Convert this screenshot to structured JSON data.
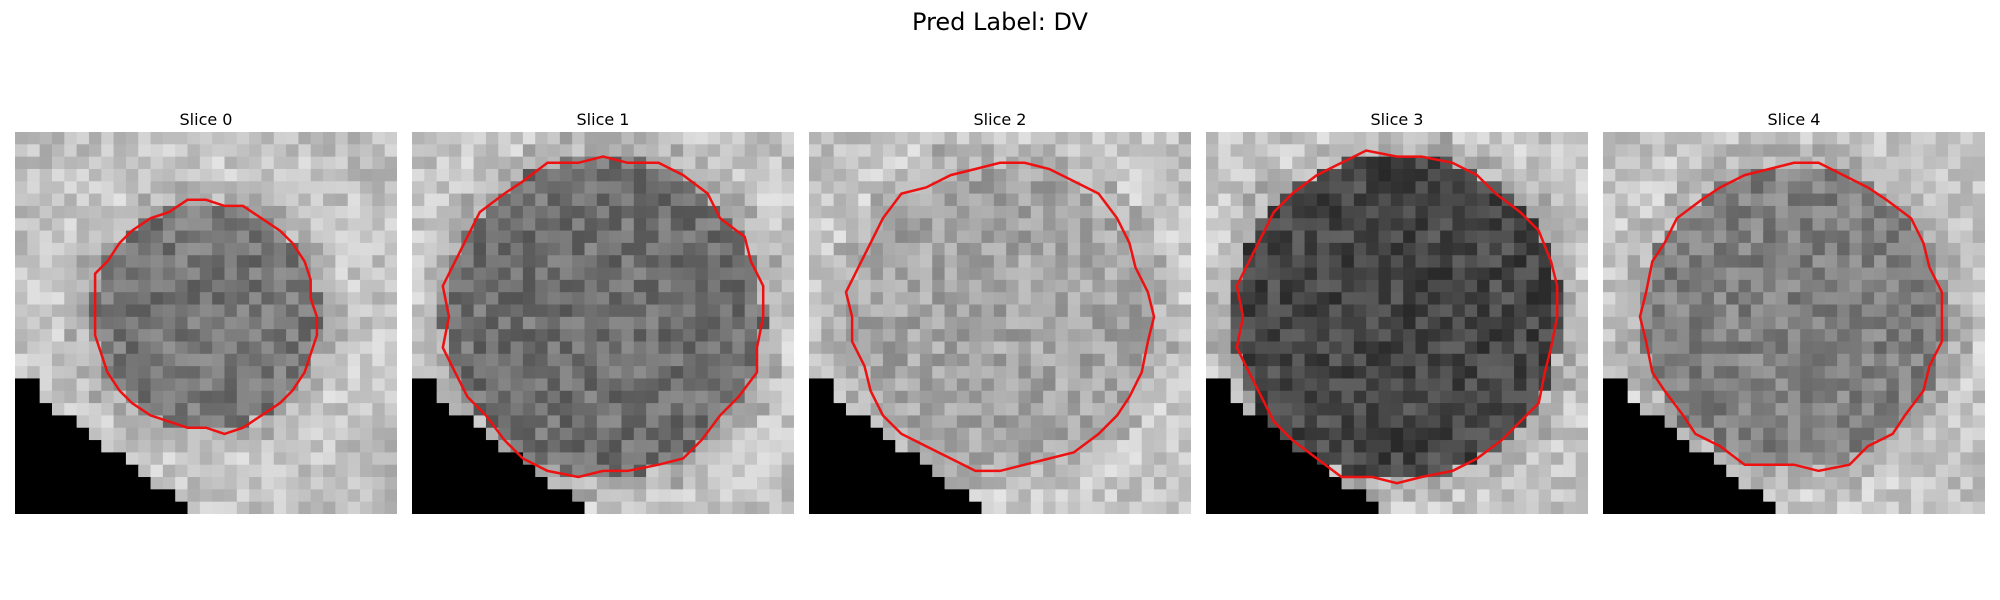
{
  "figure": {
    "title": "Pred Label: DV"
  },
  "panels": [
    {
      "title": "Slice 0",
      "tone": "light",
      "blob_mean": 118,
      "blob_radius_frac": 0.3,
      "seed": 11
    },
    {
      "title": "Slice 1",
      "tone": "light",
      "blob_mean": 112,
      "blob_radius_frac": 0.42,
      "seed": 23
    },
    {
      "title": "Slice 2",
      "tone": "light",
      "blob_mean": 165,
      "blob_radius_frac": 0.4,
      "seed": 37
    },
    {
      "title": "Slice 3",
      "tone": "mid",
      "blob_mean": 70,
      "blob_radius_frac": 0.43,
      "seed": 41
    },
    {
      "title": "Slice 4",
      "tone": "light",
      "blob_mean": 128,
      "blob_radius_frac": 0.4,
      "seed": 53
    }
  ],
  "colors": {
    "contour": "#ee1111",
    "dark_corner": "#000000"
  }
}
